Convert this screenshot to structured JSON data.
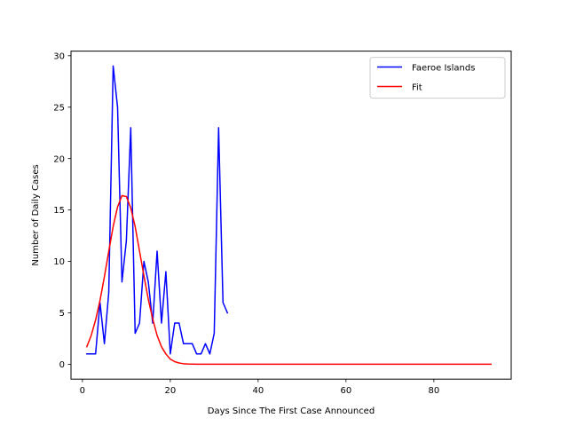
{
  "chart_data": {
    "type": "line",
    "title": "",
    "xlabel": "Days Since The First Case Announced",
    "ylabel": "Number of Daily Cases",
    "xlim": [
      -2.6,
      97.6
    ],
    "ylim": [
      -1.45,
      30.45
    ],
    "xticks": [
      0,
      20,
      40,
      60,
      80
    ],
    "yticks": [
      0,
      5,
      10,
      15,
      20,
      25,
      30
    ],
    "grid": false,
    "legend_position": "top-right",
    "series": [
      {
        "name": "Faeroe Islands",
        "color": "#0000ff",
        "x": [
          1,
          2,
          3,
          4,
          5,
          6,
          7,
          8,
          9,
          10,
          11,
          12,
          13,
          14,
          15,
          16,
          17,
          18,
          19,
          20,
          21,
          22,
          23,
          24,
          25,
          26,
          27,
          28,
          29,
          30,
          31,
          32,
          33
        ],
        "y": [
          1,
          1,
          1,
          6,
          2,
          7,
          29,
          25,
          8,
          12,
          23,
          3,
          4,
          10,
          8,
          4,
          11,
          4,
          9,
          1,
          4,
          4,
          2,
          2,
          2,
          1,
          1,
          2,
          1,
          3,
          23,
          6,
          5
        ]
      },
      {
        "name": "Fit",
        "color": "#ff0000",
        "x": [
          1,
          2,
          3,
          4,
          5,
          6,
          7,
          8,
          9,
          10,
          11,
          12,
          13,
          14,
          15,
          16,
          17,
          18,
          19,
          20,
          21,
          22,
          23,
          24,
          25,
          26,
          27,
          28,
          30,
          35,
          40,
          45,
          50,
          55,
          60,
          65,
          70,
          75,
          80,
          85,
          90,
          93
        ],
        "y": [
          1.7,
          2.8,
          4.3,
          6.2,
          8.5,
          11.0,
          13.4,
          15.3,
          16.4,
          16.3,
          15.2,
          13.4,
          11.0,
          8.6,
          6.3,
          4.4,
          2.8,
          1.7,
          1.0,
          0.5,
          0.25,
          0.12,
          0.05,
          0.02,
          0.01,
          0,
          0,
          0,
          0,
          0,
          0,
          0,
          0,
          0,
          0,
          0,
          0,
          0,
          0,
          0,
          0,
          0
        ]
      }
    ]
  }
}
